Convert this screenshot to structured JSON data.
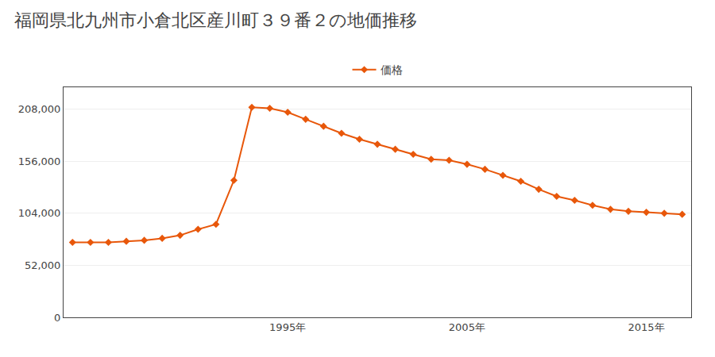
{
  "chart_data": {
    "type": "line",
    "title": "福岡県北九州市小倉北区産川町３９番２の地価推移",
    "x": [
      1983,
      1984,
      1985,
      1986,
      1987,
      1988,
      1989,
      1990,
      1991,
      1992,
      1993,
      1994,
      1995,
      1996,
      1997,
      1998,
      1999,
      2000,
      2001,
      2002,
      2003,
      2004,
      2005,
      2006,
      2007,
      2008,
      2009,
      2010,
      2011,
      2012,
      2013,
      2014,
      2015,
      2016,
      2017
    ],
    "series": [
      {
        "name": "価格",
        "color": "#e8570a",
        "marker": "diamond",
        "values": [
          75000,
          75000,
          75000,
          76000,
          77000,
          79000,
          82000,
          88000,
          93000,
          137000,
          210000,
          209000,
          205000,
          198000,
          191000,
          184000,
          178000,
          173000,
          168000,
          163000,
          158000,
          157000,
          153000,
          148000,
          142000,
          136000,
          128000,
          121000,
          117000,
          112000,
          108000,
          106000,
          105000,
          104000,
          103000
        ]
      }
    ],
    "xlim": [
      1982.5,
      2017.5
    ],
    "xticks": [
      {
        "value": 1995,
        "label": "1995年"
      },
      {
        "value": 2005,
        "label": "2005年"
      },
      {
        "value": 2015,
        "label": "2015年"
      }
    ],
    "ylim": [
      0,
      230000
    ],
    "yticks": [
      0,
      {
        "value": 52000,
        "label": "52,000"
      },
      {
        "value": 104000,
        "label": "104,000"
      },
      {
        "value": 156000,
        "label": "156,000"
      },
      {
        "value": 208000,
        "label": "208,000"
      }
    ],
    "grid": "y",
    "legend": "top"
  }
}
